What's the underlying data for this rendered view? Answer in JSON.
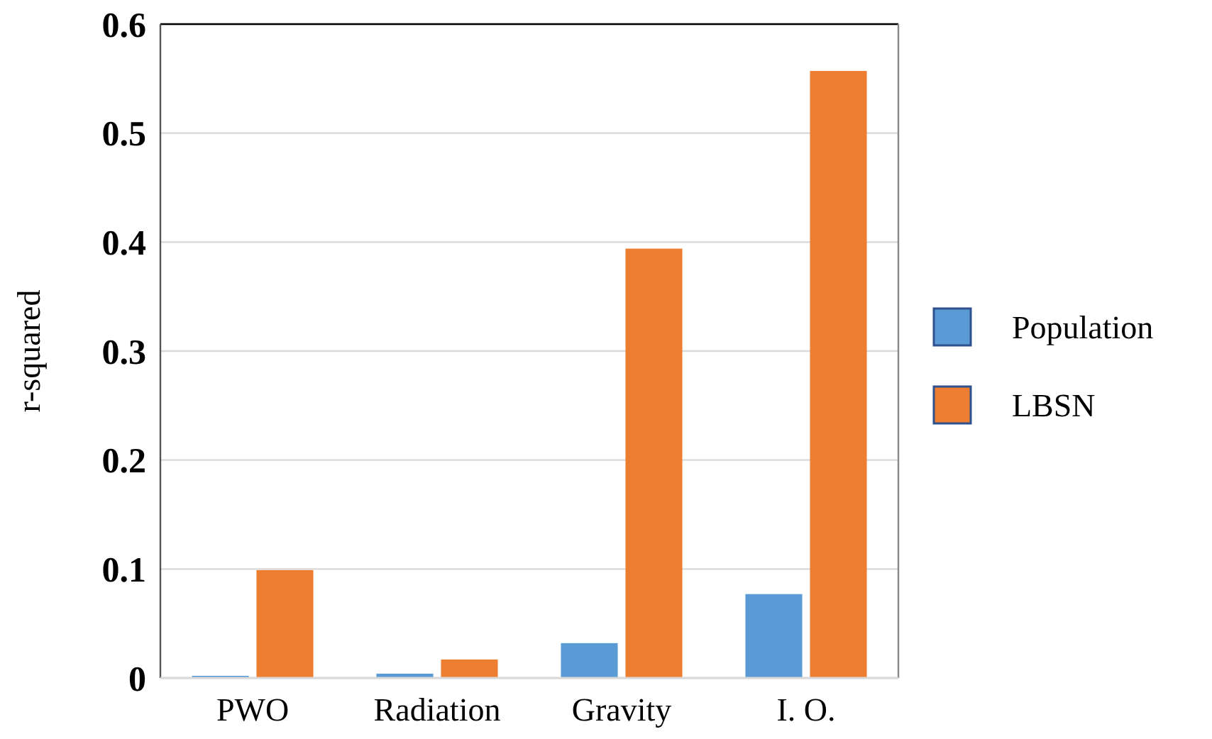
{
  "chart_data": {
    "type": "bar",
    "ylabel": "r-squared",
    "categories": [
      "PWO",
      "Radiation",
      "Gravity",
      "I. O."
    ],
    "series": [
      {
        "name": "Population",
        "color": "#5b9bd5",
        "values": [
          0.002,
          0.004,
          0.032,
          0.077
        ]
      },
      {
        "name": "LBSN",
        "color": "#ed7d31",
        "values": [
          0.099,
          0.017,
          0.394,
          0.557
        ]
      }
    ],
    "ylim": [
      0,
      0.6
    ],
    "yticks": [
      0,
      0.1,
      0.2,
      0.3,
      0.4,
      0.5,
      0.6
    ],
    "grid": "y",
    "legend": "right"
  }
}
